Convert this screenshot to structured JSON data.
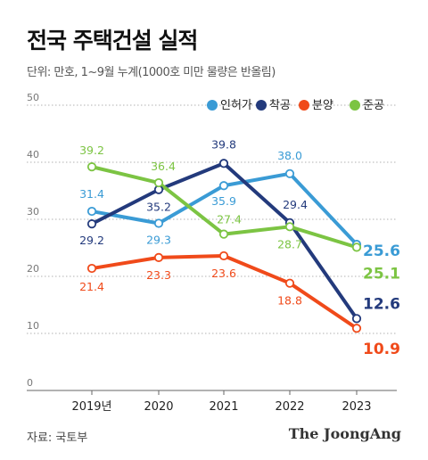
{
  "title": "전국 주택건설 실적",
  "subtitle": "단위: 만호, 1~9월 누계(1000호 미만 물량은 반올림)",
  "source": "자료: 국토부",
  "logo": "The JoongAng",
  "chart_data": {
    "type": "line",
    "categories": [
      "2019년",
      "2020",
      "2021",
      "2022",
      "2023"
    ],
    "ylim": [
      0,
      50
    ],
    "yticks": [
      0,
      10,
      20,
      30,
      40,
      50
    ],
    "grid": true,
    "legend": "top-right",
    "series": [
      {
        "name": "인허가",
        "color": "#3a9bd5",
        "values": [
          31.4,
          29.3,
          35.9,
          38.0,
          25.6
        ]
      },
      {
        "name": "착공",
        "color": "#233a7c",
        "values": [
          29.2,
          35.2,
          39.8,
          29.4,
          12.6
        ]
      },
      {
        "name": "분양",
        "color": "#f04a1a",
        "values": [
          21.4,
          23.3,
          23.6,
          18.8,
          10.9
        ]
      },
      {
        "name": "준공",
        "color": "#7cc443",
        "values": [
          39.2,
          36.4,
          27.4,
          28.7,
          25.1
        ]
      }
    ]
  }
}
